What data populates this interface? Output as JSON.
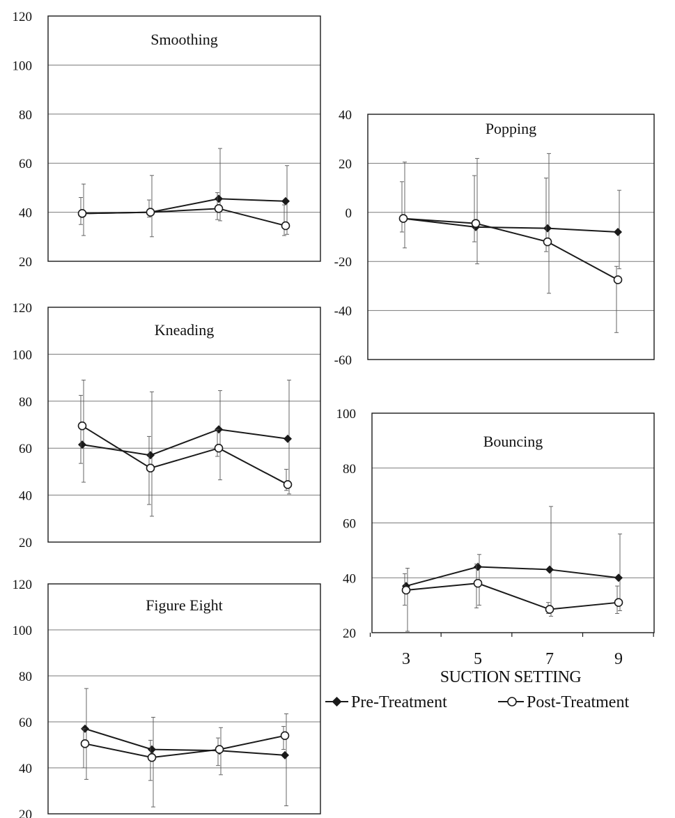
{
  "chart_data": [
    {
      "type": "line",
      "title": "Smoothing",
      "categories": [
        "3",
        "5",
        "7",
        "9"
      ],
      "ylim": [
        20,
        120
      ],
      "yticks": [
        20,
        40,
        60,
        80,
        100,
        120
      ],
      "grid": true,
      "series": [
        {
          "name": "Pre-Treatment",
          "marker": "filled-diamond",
          "values": [
            39.5,
            40,
            45.5,
            44.5
          ],
          "err_low": [
            30.5,
            30,
            36.5,
            31
          ],
          "err_high": [
            51.5,
            55,
            66,
            59
          ]
        },
        {
          "name": "Post-Treatment",
          "marker": "open-circle",
          "values": [
            39.5,
            40,
            41.5,
            34.5
          ],
          "err_low": [
            35,
            38,
            37,
            30.5
          ],
          "err_high": [
            46,
            45,
            48,
            43
          ]
        }
      ]
    },
    {
      "type": "line",
      "title": "Kneading",
      "categories": [
        "3",
        "5",
        "7",
        "9"
      ],
      "ylim": [
        20,
        120
      ],
      "yticks": [
        20,
        40,
        60,
        80,
        100,
        120
      ],
      "grid": true,
      "series": [
        {
          "name": "Pre-Treatment",
          "marker": "filled-diamond",
          "values": [
            61.5,
            57,
            68,
            64
          ],
          "err_low": [
            45.5,
            31,
            46.5,
            40.5
          ],
          "err_high": [
            89,
            84,
            84.5,
            89
          ]
        },
        {
          "name": "Post-Treatment",
          "marker": "open-circle",
          "values": [
            69.5,
            51.5,
            60,
            44.5
          ],
          "err_low": [
            53.5,
            36,
            56.5,
            42
          ],
          "err_high": [
            82.5,
            65,
            68,
            51
          ]
        }
      ]
    },
    {
      "type": "line",
      "title": "Figure Eight",
      "categories": [
        "3",
        "5",
        "7",
        "9"
      ],
      "ylim": [
        20,
        120
      ],
      "yticks": [
        20,
        40,
        60,
        80,
        100,
        120
      ],
      "grid": true,
      "series": [
        {
          "name": "Pre-Treatment",
          "marker": "filled-diamond",
          "values": [
            57,
            48,
            47.5,
            45.5
          ],
          "err_low": [
            35,
            23,
            37,
            23.5
          ],
          "err_high": [
            74.5,
            62,
            57.5,
            63.5
          ]
        },
        {
          "name": "Post-Treatment",
          "marker": "open-circle",
          "values": [
            50.5,
            44.5,
            48,
            54
          ],
          "err_low": [
            40,
            34.5,
            41,
            48
          ],
          "err_high": [
            57,
            52,
            53,
            58
          ]
        }
      ]
    },
    {
      "type": "line",
      "title": "Popping",
      "categories": [
        "3",
        "5",
        "7",
        "9"
      ],
      "ylim": [
        -60,
        40
      ],
      "yticks": [
        -60,
        -40,
        -20,
        0,
        20,
        40
      ],
      "grid": true,
      "series": [
        {
          "name": "Pre-Treatment",
          "marker": "filled-diamond",
          "values": [
            -2.5,
            -6,
            -6.5,
            -8
          ],
          "err_low": [
            -14.5,
            -21,
            -33,
            -23
          ],
          "err_high": [
            20.5,
            22,
            24,
            9
          ]
        },
        {
          "name": "Post-Treatment",
          "marker": "open-circle",
          "values": [
            -2.5,
            -4.5,
            -12,
            -27.5
          ],
          "err_low": [
            -8,
            -12,
            -16,
            -49
          ],
          "err_high": [
            12.5,
            15,
            14,
            -22
          ]
        }
      ]
    },
    {
      "type": "line",
      "title": "Bouncing",
      "categories": [
        "3",
        "5",
        "7",
        "9"
      ],
      "ylim": [
        20,
        100
      ],
      "yticks": [
        20,
        40,
        60,
        80,
        100
      ],
      "grid": true,
      "xlabel": "SUCTION SETTING",
      "series": [
        {
          "name": "Pre-Treatment",
          "marker": "filled-diamond",
          "values": [
            37,
            44,
            43,
            40
          ],
          "err_low": [
            20.5,
            30,
            26,
            28
          ],
          "err_high": [
            43.5,
            48.5,
            66,
            56
          ]
        },
        {
          "name": "Post-Treatment",
          "marker": "open-circle",
          "values": [
            35.5,
            38,
            28.5,
            31
          ],
          "err_low": [
            30,
            29,
            27,
            27
          ],
          "err_high": [
            41.5,
            45,
            31,
            37
          ]
        }
      ]
    }
  ],
  "legend": {
    "placement": "bottom-right",
    "entries": [
      {
        "label": "Pre-Treatment",
        "marker": "filled-diamond"
      },
      {
        "label": "Post-Treatment",
        "marker": "open-circle"
      }
    ]
  },
  "colors": {
    "line": "#1a1a1a",
    "grid": "#7a7a7a",
    "frame": "#1a1a1a",
    "open_marker_fill": "#ffffff"
  }
}
